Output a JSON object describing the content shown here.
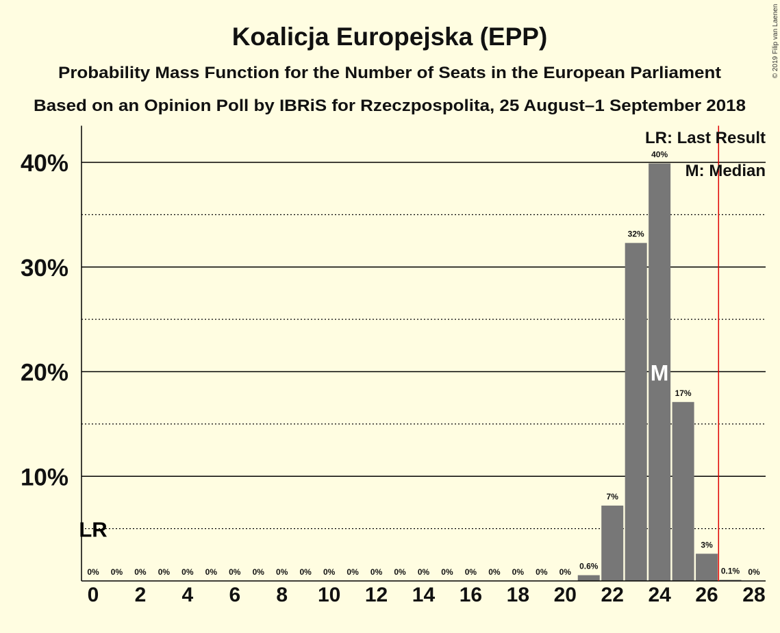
{
  "title": "Koalicja Europejska (EPP)",
  "subtitle": "Probability Mass Function for the Number of Seats in the European Parliament",
  "source": "Based on an Opinion Poll by IBRiS for Rzeczpospolita, 25 August–1 September 2018",
  "copyright": "© 2019 Filip van Laenen",
  "legend": {
    "last_result": "LR: Last Result",
    "median": "M: Median"
  },
  "colors": {
    "background": "#fffde1",
    "bar": "#777777",
    "red_line": "#e00000",
    "axis": "#000000",
    "median_text": "#ffffff"
  },
  "chart_data": {
    "type": "bar",
    "title": "Koalicja Europejska (EPP)",
    "xlabel": "",
    "ylabel": "",
    "categories": [
      0,
      1,
      2,
      3,
      4,
      5,
      6,
      7,
      8,
      9,
      10,
      11,
      12,
      13,
      14,
      15,
      16,
      17,
      18,
      19,
      20,
      21,
      22,
      23,
      24,
      25,
      26,
      27,
      28
    ],
    "values": [
      0,
      0,
      0,
      0,
      0,
      0,
      0,
      0,
      0,
      0,
      0,
      0,
      0,
      0,
      0,
      0,
      0,
      0,
      0,
      0,
      0,
      0.55,
      7.2,
      32.3,
      39.9,
      17.1,
      2.6,
      0.1,
      0
    ],
    "value_labels": [
      "0%",
      "0%",
      "0%",
      "0%",
      "0%",
      "0%",
      "0%",
      "0%",
      "0%",
      "0%",
      "0%",
      "0%",
      "0%",
      "0%",
      "0%",
      "0%",
      "0%",
      "0%",
      "0%",
      "0%",
      "0%",
      "0.6%",
      "7%",
      "32%",
      "40%",
      "17%",
      "3%",
      "0.1%",
      "0%"
    ],
    "ylim": [
      0,
      43.5
    ],
    "major_yticks": [
      10,
      20,
      30,
      40
    ],
    "major_ytick_labels": [
      "10%",
      "20%",
      "30%",
      "40%"
    ],
    "minor_yticks": [
      5,
      15,
      25,
      35
    ],
    "xtick_labels": [
      "0",
      "2",
      "4",
      "6",
      "8",
      "10",
      "12",
      "14",
      "16",
      "18",
      "20",
      "22",
      "24",
      "26",
      "28"
    ],
    "median_seat": 24,
    "median_label": "M",
    "last_result_seat": 0,
    "last_result_label": "LR",
    "red_line_seat": 26.5
  }
}
